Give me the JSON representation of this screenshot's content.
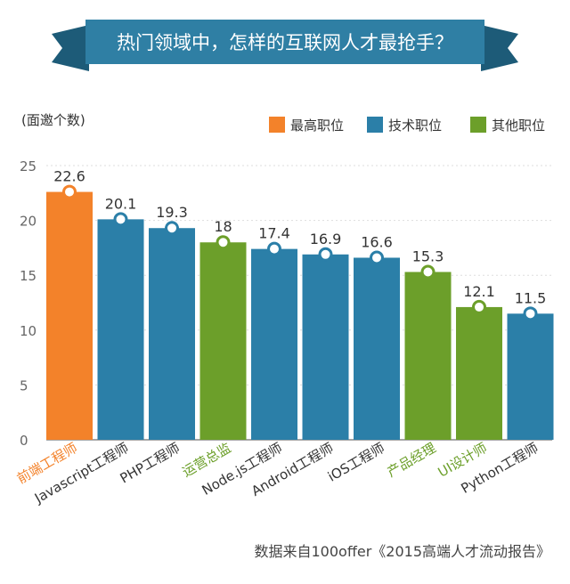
{
  "header": {
    "title": "热门领域中，怎样的互联网人才最抢手？"
  },
  "colors": {
    "banner": "#2f7fa4",
    "banner_dark": "#1d5b78",
    "top": "#f3822a",
    "tech": "#2b7fa8",
    "other": "#6c9f2a",
    "axis": "#888888",
    "grid": "#dddddd"
  },
  "chart_data": {
    "type": "bar",
    "ylabel": "(面邀个数)",
    "ylim": [
      0,
      25
    ],
    "yticks": [
      0,
      5,
      10,
      15,
      20,
      25
    ],
    "legend": [
      {
        "name": "最高职位",
        "key": "top"
      },
      {
        "name": "技术职位",
        "key": "tech"
      },
      {
        "name": "其他职位",
        "key": "other"
      }
    ],
    "categories": [
      "前端工程师",
      "Javascript工程师",
      "PHP工程师",
      "运营总监",
      "Node.js工程师",
      "Android工程师",
      "iOS工程师",
      "产品经理",
      "UI设计师",
      "Python工程师"
    ],
    "values": [
      22.6,
      20.1,
      19.3,
      18,
      17.4,
      16.9,
      16.6,
      15.3,
      12.1,
      11.5
    ],
    "value_labels": [
      "22.6",
      "20.1",
      "19.3",
      "18",
      "17.4",
      "16.9",
      "16.6",
      "15.3",
      "12.1",
      "11.5"
    ],
    "groups": [
      "top",
      "tech",
      "tech",
      "other",
      "tech",
      "tech",
      "tech",
      "other",
      "other",
      "tech"
    ]
  },
  "footer": {
    "source": "数据来自100offer《2015高端人才流动报告》"
  }
}
